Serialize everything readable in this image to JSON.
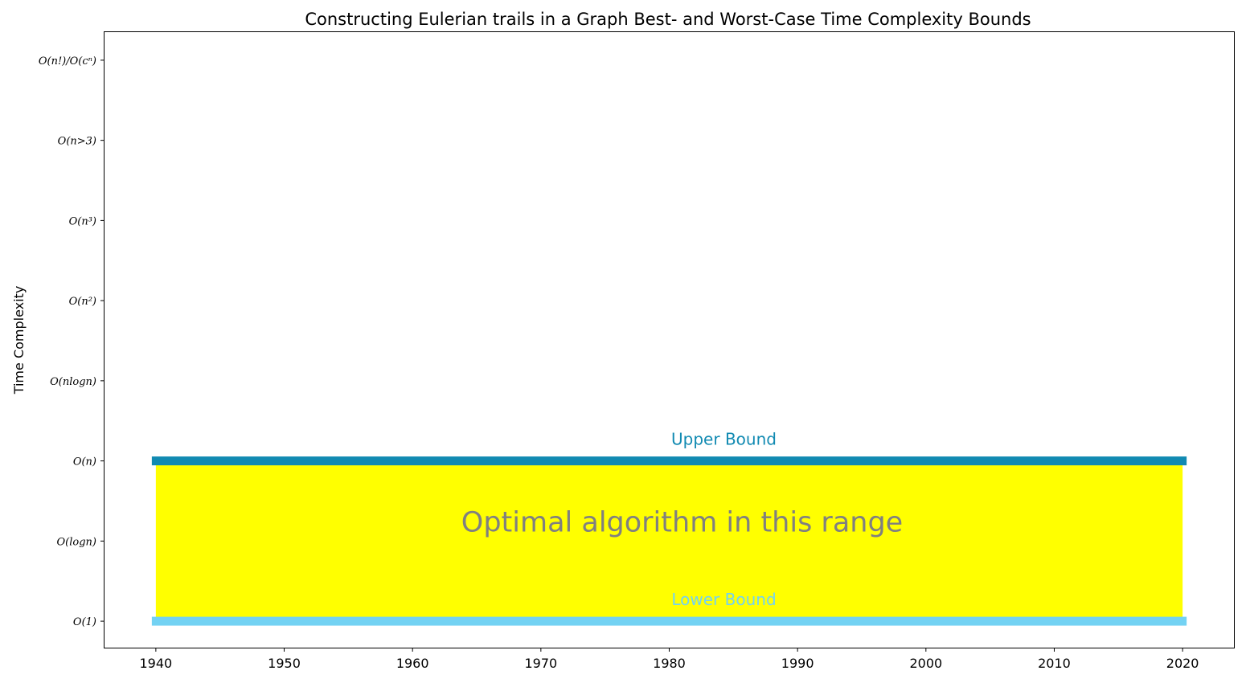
{
  "chart_data": {
    "type": "bar",
    "title": "Constructing Eulerian trails in a Graph Best- and Worst-Case Time Complexity Bounds",
    "xlabel": "",
    "ylabel": "Time Complexity",
    "xlim": [
      1936,
      2024
    ],
    "ylim": [
      -0.33,
      7.35
    ],
    "x_ticks": [
      1940,
      1950,
      1960,
      1970,
      1980,
      1990,
      2000,
      2010,
      2020
    ],
    "y_ticks": [
      {
        "value": 0,
        "label": "O(1)"
      },
      {
        "value": 1,
        "label": "O(logn)"
      },
      {
        "value": 2,
        "label": "O(n)"
      },
      {
        "value": 3,
        "label": "O(nlogn)"
      },
      {
        "value": 4,
        "label": "O(n²)"
      },
      {
        "value": 5,
        "label": "O(n³)"
      },
      {
        "value": 6,
        "label": "O(n>3)"
      },
      {
        "value": 7,
        "label": "O(n!)/O(cⁿ)"
      }
    ],
    "grid": false,
    "bounds": [
      {
        "name": "Upper Bound",
        "value": 2,
        "x_start": 1940,
        "x_end": 2020,
        "color": "#118ab2"
      },
      {
        "name": "Lower Bound",
        "value": 0,
        "x_start": 1940,
        "x_end": 2020,
        "color": "#73d2f3"
      }
    ],
    "band": {
      "from": 0,
      "to": 2,
      "x_start": 1940,
      "x_end": 2020,
      "color": "#ffff00",
      "label": "Optimal algorithm in this range"
    }
  }
}
